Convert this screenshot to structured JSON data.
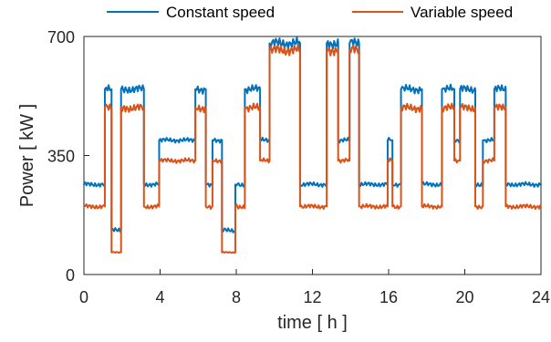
{
  "chart_data": {
    "type": "line",
    "xlabel": "time [ h ]",
    "ylabel": "Power [ kW ]",
    "xlim": [
      0,
      24
    ],
    "ylim": [
      0,
      700
    ],
    "xticks": [
      0,
      4,
      8,
      12,
      16,
      20,
      24
    ],
    "yticks": [
      0,
      350,
      700
    ],
    "grid": false,
    "legend_position": "top",
    "series": [
      {
        "name": "Constant speed",
        "color": "#0072BD",
        "segments": [
          [
            0.0,
            1.1,
            265
          ],
          [
            1.1,
            1.45,
            545
          ],
          [
            1.45,
            1.95,
            130
          ],
          [
            1.95,
            2.05,
            545
          ],
          [
            2.05,
            3.15,
            545
          ],
          [
            3.15,
            3.95,
            265
          ],
          [
            3.95,
            5.85,
            395
          ],
          [
            5.85,
            6.4,
            545
          ],
          [
            6.4,
            6.75,
            265
          ],
          [
            6.75,
            7.25,
            395
          ],
          [
            7.25,
            7.95,
            130
          ],
          [
            7.95,
            8.05,
            265
          ],
          [
            8.05,
            8.45,
            265
          ],
          [
            8.45,
            9.25,
            545
          ],
          [
            9.25,
            9.75,
            395
          ],
          [
            9.75,
            11.35,
            680
          ],
          [
            11.35,
            12.75,
            265
          ],
          [
            12.75,
            13.35,
            680
          ],
          [
            13.35,
            13.95,
            395
          ],
          [
            13.95,
            14.45,
            680
          ],
          [
            14.45,
            15.95,
            265
          ],
          [
            15.95,
            16.2,
            395
          ],
          [
            16.2,
            16.65,
            265
          ],
          [
            16.65,
            17.75,
            545
          ],
          [
            17.75,
            18.8,
            265
          ],
          [
            18.8,
            19.45,
            545
          ],
          [
            19.45,
            19.75,
            395
          ],
          [
            19.75,
            20.55,
            545
          ],
          [
            20.55,
            20.95,
            265
          ],
          [
            20.95,
            21.55,
            395
          ],
          [
            21.55,
            22.15,
            545
          ],
          [
            22.15,
            24.0,
            265
          ]
        ]
      },
      {
        "name": "Variable speed",
        "color": "#D95319",
        "segments": [
          [
            0.0,
            1.1,
            200
          ],
          [
            1.1,
            1.45,
            490
          ],
          [
            1.45,
            1.95,
            65
          ],
          [
            1.95,
            2.05,
            490
          ],
          [
            2.05,
            3.15,
            490
          ],
          [
            3.15,
            3.95,
            200
          ],
          [
            3.95,
            5.85,
            335
          ],
          [
            5.85,
            6.4,
            490
          ],
          [
            6.4,
            6.75,
            200
          ],
          [
            6.75,
            7.25,
            335
          ],
          [
            7.25,
            7.95,
            65
          ],
          [
            7.95,
            8.05,
            200
          ],
          [
            8.05,
            8.45,
            200
          ],
          [
            8.45,
            9.25,
            490
          ],
          [
            9.25,
            9.75,
            335
          ],
          [
            9.75,
            11.35,
            660
          ],
          [
            11.35,
            12.75,
            200
          ],
          [
            12.75,
            13.35,
            660
          ],
          [
            13.35,
            13.95,
            335
          ],
          [
            13.95,
            14.45,
            660
          ],
          [
            14.45,
            15.95,
            200
          ],
          [
            15.95,
            16.2,
            335
          ],
          [
            16.2,
            16.65,
            200
          ],
          [
            16.65,
            17.75,
            490
          ],
          [
            17.75,
            18.8,
            200
          ],
          [
            18.8,
            19.45,
            490
          ],
          [
            19.45,
            19.75,
            335
          ],
          [
            19.75,
            20.55,
            490
          ],
          [
            20.55,
            20.95,
            200
          ],
          [
            20.95,
            21.55,
            335
          ],
          [
            21.55,
            22.15,
            490
          ],
          [
            22.15,
            24.0,
            200
          ]
        ]
      }
    ]
  }
}
